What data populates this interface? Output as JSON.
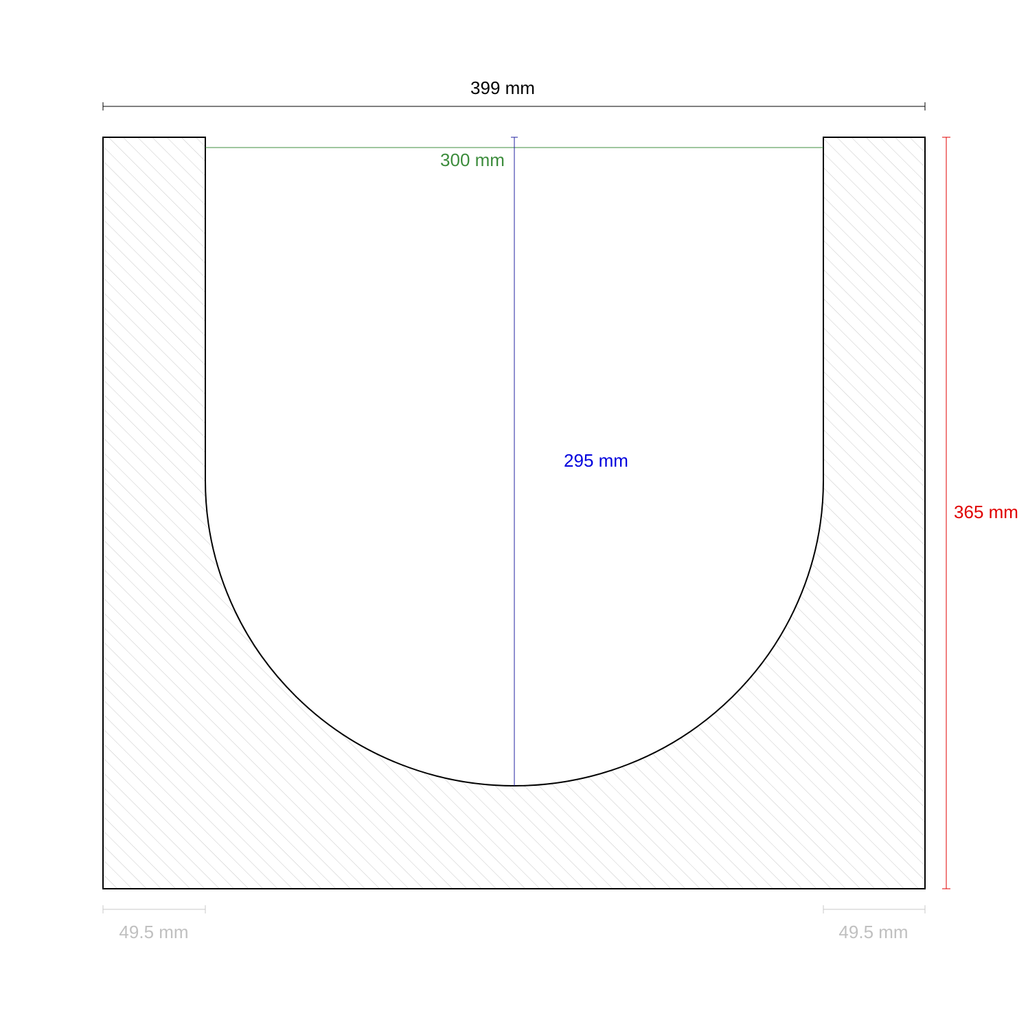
{
  "dimensions": {
    "overall_width": "399 mm",
    "channel_width": "300 mm",
    "channel_depth": "295 mm",
    "overall_height": "365 mm",
    "left_wall": "49.5 mm",
    "right_wall": "49.5 mm"
  }
}
